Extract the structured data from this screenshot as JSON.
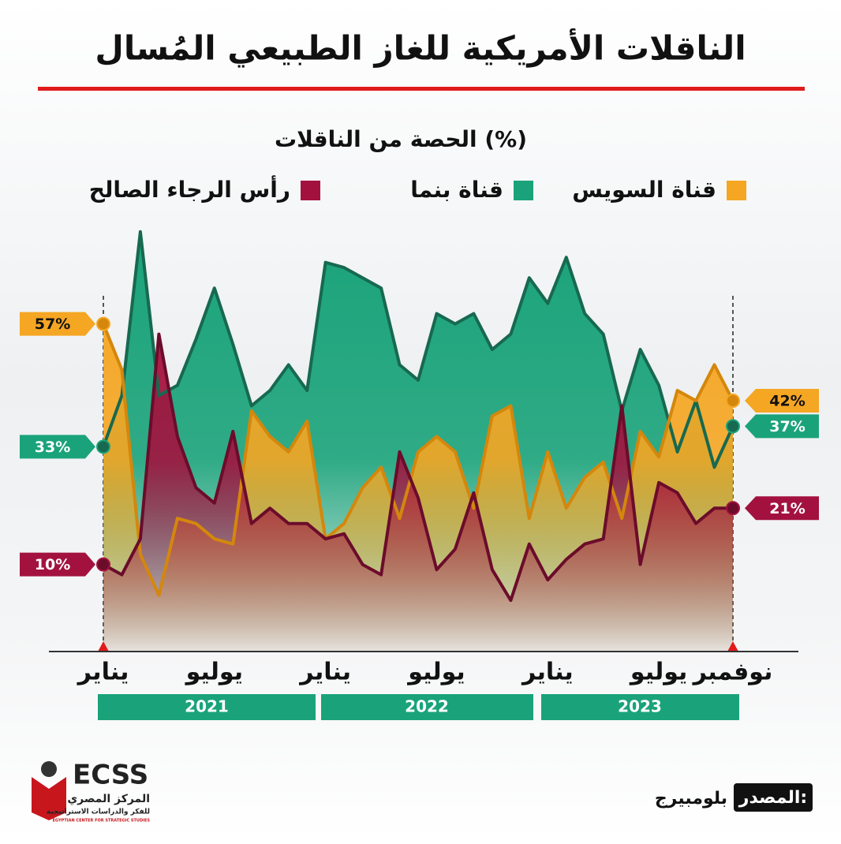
{
  "chart_data": {
    "type": "area",
    "title": "الناقلات الأمريكية للغاز الطبيعي المُسال",
    "subtitle": "الحصة من الناقلات (%)",
    "categories": [
      "يناير",
      null,
      null,
      null,
      null,
      null,
      "يوليو",
      null,
      null,
      null,
      null,
      null,
      "يناير",
      null,
      null,
      null,
      null,
      null,
      "يوليو",
      null,
      null,
      null,
      null,
      null,
      "يناير",
      null,
      null,
      null,
      null,
      null,
      "يوليو",
      null,
      null,
      null,
      "نوفمبر"
    ],
    "year_groups": [
      "2021",
      "2022",
      "2023"
    ],
    "ylim": [
      -7,
      76
    ],
    "series": [
      {
        "name": "قناة بنما",
        "color": "#1aa37a",
        "line_color": "#17694f",
        "values": [
          33,
          43,
          75,
          43,
          45,
          54,
          64,
          53,
          41,
          44,
          49,
          44,
          69,
          68,
          66,
          64,
          49,
          46,
          59,
          57,
          59,
          52,
          55,
          66,
          61,
          70,
          59,
          55,
          40,
          52,
          45,
          32,
          42,
          29,
          37
        ],
        "value_labels": [
          "33%",
          null,
          null,
          null,
          null,
          null,
          null,
          null,
          null,
          null,
          null,
          null,
          null,
          null,
          null,
          null,
          null,
          null,
          null,
          null,
          null,
          null,
          null,
          null,
          null,
          null,
          null,
          null,
          null,
          null,
          null,
          null,
          null,
          null,
          "37%"
        ]
      },
      {
        "name": "قناة السويس",
        "color": "#f5a623",
        "line_color": "#d4870c",
        "values": [
          57,
          48,
          12,
          4,
          19,
          18,
          15,
          14,
          40,
          35,
          32,
          38,
          15,
          18,
          25,
          29,
          19,
          32,
          35,
          32,
          21,
          39,
          41,
          19,
          32,
          21,
          27,
          30,
          19,
          36,
          31,
          44,
          42,
          49,
          42
        ],
        "value_labels": [
          "57%",
          null,
          null,
          null,
          null,
          null,
          null,
          null,
          null,
          null,
          null,
          null,
          null,
          null,
          null,
          null,
          null,
          null,
          null,
          null,
          null,
          null,
          null,
          null,
          null,
          null,
          null,
          null,
          null,
          null,
          null,
          null,
          null,
          null,
          "42%"
        ]
      },
      {
        "name": "رأس الرجاء الصالح",
        "color": "#a3123f",
        "line_color": "#6b0c2b",
        "values": [
          10,
          8,
          15,
          55,
          35,
          25,
          22,
          36,
          18,
          21,
          18,
          18,
          15,
          16,
          10,
          8,
          32,
          23,
          9,
          13,
          24,
          9,
          3,
          14,
          7,
          11,
          14,
          15,
          41,
          10,
          26,
          24,
          18,
          21,
          21
        ],
        "value_labels": [
          "10%",
          null,
          null,
          null,
          null,
          null,
          null,
          null,
          null,
          null,
          null,
          null,
          null,
          null,
          null,
          null,
          null,
          null,
          null,
          null,
          null,
          null,
          null,
          null,
          null,
          null,
          null,
          null,
          null,
          null,
          null,
          null,
          null,
          null,
          "21%"
        ]
      }
    ]
  },
  "legend_order": [
    1,
    0,
    2
  ],
  "source_label": "المصدر:",
  "source": "بلومبيرج",
  "logo": {
    "name": "ECSS",
    "line1": "المركز المصري",
    "line2": "للفكر والدراسات الاستراتيجية",
    "line3": "EGYPTIAN CENTER FOR STRATEGIC STUDIES"
  }
}
